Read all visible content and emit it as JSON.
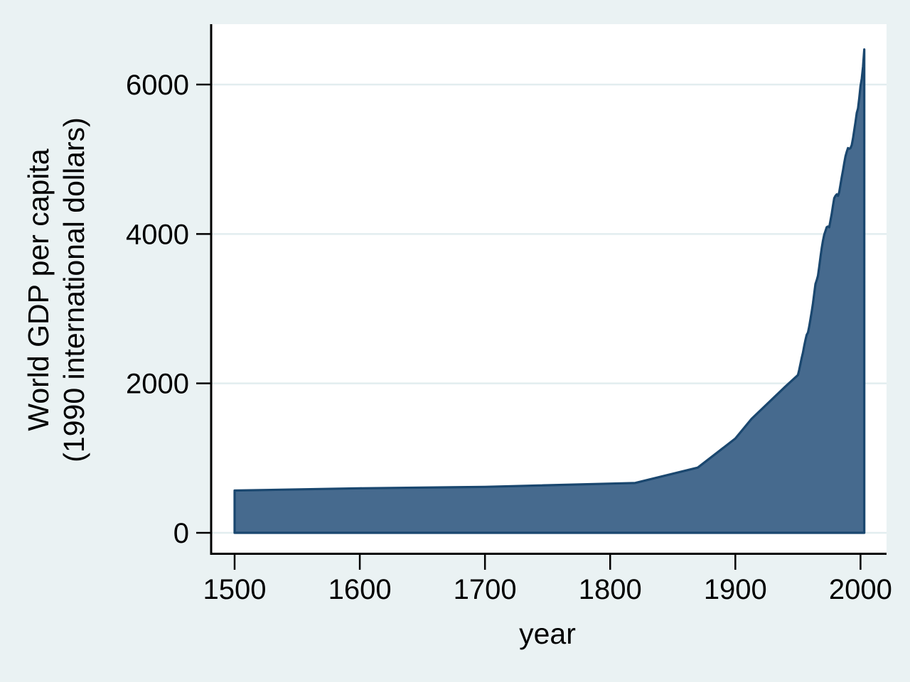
{
  "chart_data": {
    "type": "area",
    "title": "",
    "xlabel": "year",
    "ylabel": "World GDP per capita (1990 international dollars)",
    "ylabel_line1": "World GDP per capita",
    "ylabel_line2": "(1990 international dollars)",
    "x_ticks": [
      1500,
      1600,
      1700,
      1800,
      1900,
      2000
    ],
    "y_ticks": [
      0,
      2000,
      4000,
      6000
    ],
    "xlim": [
      1500,
      2003
    ],
    "ylim": [
      0,
      6810
    ],
    "grid": "horizontal-only",
    "legend": "none",
    "series": [
      {
        "name": "World GDP per capita (1990 international dollars)",
        "points": [
          [
            1500,
            566
          ],
          [
            1600,
            596
          ],
          [
            1700,
            615
          ],
          [
            1820,
            667
          ],
          [
            1870,
            873
          ],
          [
            1900,
            1262
          ],
          [
            1913,
            1526
          ],
          [
            1940,
            1958
          ],
          [
            1950,
            2111
          ],
          [
            1951,
            2180
          ],
          [
            1952,
            2260
          ],
          [
            1953,
            2340
          ],
          [
            1954,
            2410
          ],
          [
            1955,
            2500
          ],
          [
            1956,
            2580
          ],
          [
            1957,
            2650
          ],
          [
            1958,
            2680
          ],
          [
            1959,
            2760
          ],
          [
            1960,
            2860
          ],
          [
            1961,
            2960
          ],
          [
            1962,
            3070
          ],
          [
            1963,
            3200
          ],
          [
            1964,
            3330
          ],
          [
            1965,
            3380
          ],
          [
            1966,
            3440
          ],
          [
            1967,
            3560
          ],
          [
            1968,
            3690
          ],
          [
            1969,
            3810
          ],
          [
            1970,
            3910
          ],
          [
            1971,
            3990
          ],
          [
            1972,
            4040
          ],
          [
            1973,
            4091
          ],
          [
            1974,
            4100
          ],
          [
            1975,
            4090
          ],
          [
            1976,
            4180
          ],
          [
            1977,
            4270
          ],
          [
            1978,
            4380
          ],
          [
            1979,
            4480
          ],
          [
            1980,
            4510
          ],
          [
            1981,
            4530
          ],
          [
            1982,
            4510
          ],
          [
            1983,
            4560
          ],
          [
            1984,
            4660
          ],
          [
            1985,
            4760
          ],
          [
            1986,
            4850
          ],
          [
            1987,
            4950
          ],
          [
            1988,
            5040
          ],
          [
            1989,
            5100
          ],
          [
            1990,
            5150
          ],
          [
            1991,
            5140
          ],
          [
            1992,
            5150
          ],
          [
            1993,
            5190
          ],
          [
            1994,
            5280
          ],
          [
            1995,
            5390
          ],
          [
            1996,
            5500
          ],
          [
            1997,
            5620
          ],
          [
            1998,
            5680
          ],
          [
            1999,
            5820
          ],
          [
            2000,
            5980
          ],
          [
            2001,
            6080
          ],
          [
            2002,
            6240
          ],
          [
            2003,
            6470
          ]
        ]
      }
    ],
    "colors": {
      "area_fill": "#466a8e",
      "area_outline": "#1a476f",
      "background": "#eaf2f3",
      "plot_background": "#ffffff",
      "gridline": "#e2edef",
      "axis": "#000000",
      "text": "#000000"
    }
  }
}
